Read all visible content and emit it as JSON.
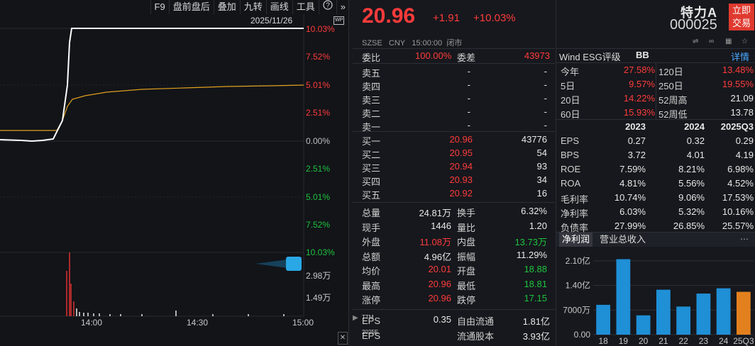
{
  "toolbar": {
    "items": [
      "F9",
      "盘前盘后",
      "叠加",
      "九转",
      "画线",
      "工具"
    ],
    "help_icon": "help-icon",
    "more_icon": "chevron-double-right-icon"
  },
  "chart": {
    "date": "2025/11/26",
    "wp_badge": "WP",
    "ylabels_up": [
      "10.03%",
      "7.52%",
      "5.01%",
      "2.51%"
    ],
    "ylabel_zero": "0.00%",
    "ylabels_down": [
      "2.51%",
      "5.01%",
      "7.52%",
      "10.03%"
    ],
    "vol_labels": [
      "2.98万",
      "1.49万"
    ],
    "xlabels": [
      "14:00",
      "14:30",
      "15:00"
    ]
  },
  "header": {
    "price": "20.96",
    "change": "+1.91",
    "pct": "+10.03%",
    "name": "特力A",
    "code": "000025",
    "market": "SZSE",
    "currency": "CNY",
    "time": "15:00:00",
    "status": "闭市",
    "trade_btn_line1": "立即",
    "trade_btn_line2": "交易",
    "link_icon": "link-icon",
    "star_icon": "star-icon"
  },
  "order": {
    "webi_label": "委比",
    "webi": "100.00%",
    "weicha_label": "委差",
    "weicha": "43973",
    "asks": [
      {
        "label": "卖五",
        "price": "-",
        "vol": "-"
      },
      {
        "label": "卖四",
        "price": "-",
        "vol": "-"
      },
      {
        "label": "卖三",
        "price": "-",
        "vol": "-"
      },
      {
        "label": "卖二",
        "price": "-",
        "vol": "-"
      },
      {
        "label": "卖一",
        "price": "-",
        "vol": "-"
      }
    ],
    "bids": [
      {
        "label": "买一",
        "price": "20.96",
        "vol": "43776"
      },
      {
        "label": "买二",
        "price": "20.95",
        "vol": "54"
      },
      {
        "label": "买三",
        "price": "20.94",
        "vol": "93"
      },
      {
        "label": "买四",
        "price": "20.93",
        "vol": "34"
      },
      {
        "label": "买五",
        "price": "20.92",
        "vol": "16"
      }
    ]
  },
  "stats": [
    {
      "l1": "总量",
      "v1": "24.81万",
      "c1": "white",
      "l2": "换手",
      "v2": "6.32%",
      "c2": "white"
    },
    {
      "l1": "现手",
      "v1": "1446",
      "c1": "white",
      "l2": "量比",
      "v2": "1.20",
      "c2": "white"
    },
    {
      "l1": "外盘",
      "v1": "11.08万",
      "c1": "red",
      "l2": "内盘",
      "v2": "13.73万",
      "c2": "green"
    },
    {
      "l1": "总额",
      "v1": "4.96亿",
      "c1": "white",
      "l2": "振幅",
      "v2": "11.29%",
      "c2": "white"
    },
    {
      "l1": "均价",
      "v1": "20.01",
      "c1": "red",
      "l2": "开盘",
      "v2": "18.88",
      "c2": "green"
    },
    {
      "l1": "最高",
      "v1": "20.96",
      "c1": "red",
      "l2": "最低",
      "v2": "18.81",
      "c2": "green"
    },
    {
      "l1": "涨停",
      "v1": "20.96",
      "c1": "red",
      "l2": "跌停",
      "v2": "17.15",
      "c2": "green"
    }
  ],
  "eps": {
    "eps_ttm_label": "EPS",
    "eps_ttm_sup": "TTM",
    "eps_ttm": "0.35",
    "float_label": "自由流通",
    "float_val": "1.81亿",
    "eps_2025_label": "EPS",
    "eps_2025_sup": "2025E",
    "float_shares_label": "流通股本",
    "float_shares_val": "3.93亿"
  },
  "wind": {
    "title": "Wind ESG评级",
    "rating": "BB",
    "detail": "详情"
  },
  "perf": [
    {
      "l1": "今年",
      "v1": "27.58%",
      "c1": "red",
      "l2": "120日",
      "v2": "13.48%",
      "c2": "red"
    },
    {
      "l1": "5日",
      "v1": "9.57%",
      "c1": "red",
      "l2": "250日",
      "v2": "19.55%",
      "c2": "red"
    },
    {
      "l1": "20日",
      "v1": "14.22%",
      "c1": "red",
      "l2": "52周高",
      "v2": "21.09",
      "c2": "white"
    },
    {
      "l1": "60日",
      "v1": "15.93%",
      "c1": "red",
      "l2": "52周低",
      "v2": "13.78",
      "c2": "white"
    }
  ],
  "fin_headers": [
    "2023",
    "2024",
    "2025Q3"
  ],
  "fin_rows": [
    {
      "label": "EPS",
      "vals": [
        "0.27",
        "0.32",
        "0.29"
      ]
    },
    {
      "label": "BPS",
      "vals": [
        "3.72",
        "4.01",
        "4.19"
      ]
    },
    {
      "label": "ROE",
      "vals": [
        "7.59%",
        "8.21%",
        "6.98%"
      ]
    },
    {
      "label": "ROA",
      "vals": [
        "4.81%",
        "5.56%",
        "4.52%"
      ]
    },
    {
      "label": "毛利率",
      "vals": [
        "10.74%",
        "9.06%",
        "17.53%"
      ]
    },
    {
      "label": "净利率",
      "vals": [
        "6.03%",
        "5.32%",
        "10.16%"
      ]
    },
    {
      "label": "负债率",
      "vals": [
        "27.99%",
        "26.85%",
        "25.57%"
      ]
    }
  ],
  "tabs": [
    "净利润",
    "营业总收入"
  ],
  "chart_data": {
    "type": "bar",
    "categories": [
      "18",
      "19",
      "20",
      "21",
      "22",
      "23",
      "24",
      "25Q3"
    ],
    "values": [
      8500,
      21500,
      5500,
      12800,
      8000,
      11700,
      13200,
      12200
    ],
    "ytick_labels": [
      "2.10亿",
      "1.40亿",
      "7000万",
      "0.00"
    ],
    "ylim": [
      0,
      21000
    ],
    "colors": {
      "bar": "#1f8fd6",
      "highlight": "#e3801e"
    }
  }
}
